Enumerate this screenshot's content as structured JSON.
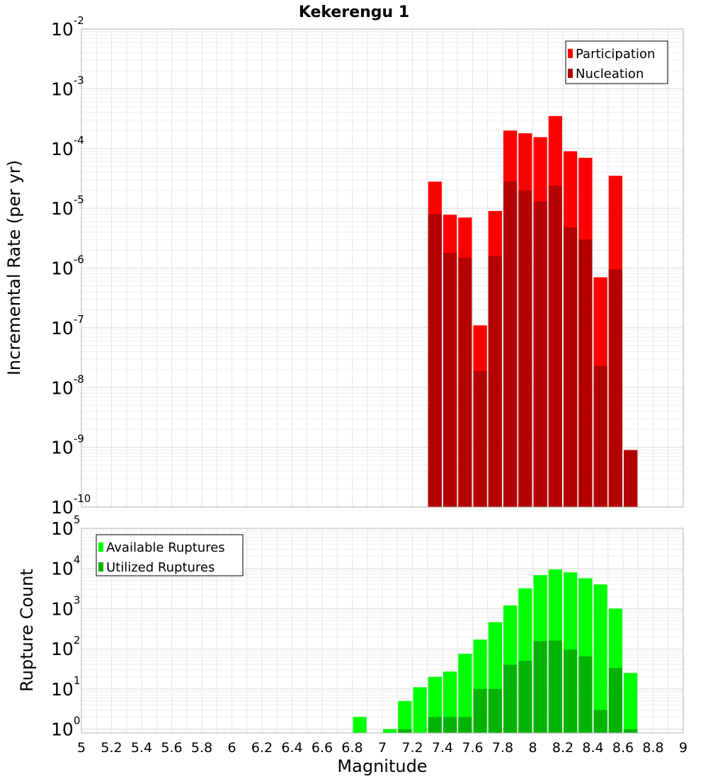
{
  "chart_data": [
    {
      "type": "bar",
      "title": "Kekerengu 1",
      "xlabel": "",
      "ylabel": "Incremental Rate (per yr)",
      "yscale": "log",
      "ylim": [
        1e-10,
        0.01
      ],
      "xlim": [
        5,
        9
      ],
      "grid": true,
      "legend_position": "top-right",
      "series": [
        {
          "name": "Participation",
          "color": "#ff0000",
          "x": [
            7.35,
            7.45,
            7.55,
            7.65,
            7.75,
            7.85,
            7.95,
            8.05,
            8.15,
            8.25,
            8.35,
            8.45,
            8.55,
            8.65
          ],
          "values": [
            2.8e-05,
            7.8e-06,
            7e-06,
            1.1e-07,
            9e-06,
            0.0002,
            0.00018,
            0.000155,
            0.00035,
            9e-05,
            7e-05,
            7e-07,
            3.5e-05,
            9e-10
          ]
        },
        {
          "name": "Nucleation",
          "color": "#b30000",
          "x": [
            7.35,
            7.45,
            7.55,
            7.65,
            7.75,
            7.85,
            7.95,
            8.05,
            8.15,
            8.25,
            8.35,
            8.45,
            8.55,
            8.65
          ],
          "values": [
            8e-06,
            1.8e-06,
            1.5e-06,
            1.9e-08,
            1.6e-06,
            2.8e-05,
            2e-05,
            1.3e-05,
            2.4e-05,
            4.8e-06,
            3e-06,
            2.3e-08,
            9.5e-07,
            9e-10
          ]
        }
      ],
      "ytick_labels": [
        {
          "base": "10",
          "exp": "-10",
          "value": 1e-10
        },
        {
          "base": "10",
          "exp": "-9",
          "value": 1e-09
        },
        {
          "base": "10",
          "exp": "-8",
          "value": 1e-08
        },
        {
          "base": "10",
          "exp": "-7",
          "value": 1e-07
        },
        {
          "base": "10",
          "exp": "-6",
          "value": 1e-06
        },
        {
          "base": "10",
          "exp": "-5",
          "value": 1e-05
        },
        {
          "base": "10",
          "exp": "-4",
          "value": 0.0001
        },
        {
          "base": "10",
          "exp": "-3",
          "value": 0.001
        },
        {
          "base": "10",
          "exp": "-2",
          "value": 0.01
        }
      ]
    },
    {
      "type": "bar",
      "title": "",
      "xlabel": "Magnitude",
      "ylabel": "Rupture Count",
      "yscale": "log",
      "ylim": [
        0.8,
        100000.0
      ],
      "xlim": [
        5,
        9
      ],
      "grid": true,
      "legend_position": "top-left",
      "series": [
        {
          "name": "Available Ruptures",
          "color": "#00ff00",
          "x": [
            6.85,
            7.05,
            7.15,
            7.25,
            7.35,
            7.45,
            7.55,
            7.65,
            7.75,
            7.85,
            7.95,
            8.05,
            8.15,
            8.25,
            8.35,
            8.45,
            8.55,
            8.65
          ],
          "values": [
            2,
            1,
            5,
            11,
            20,
            27,
            75,
            170,
            460,
            1200,
            3200,
            6800,
            9500,
            8000,
            5700,
            4000,
            1000,
            25
          ]
        },
        {
          "name": "Utilized Ruptures",
          "color": "#00b300",
          "x": [
            7.15,
            7.35,
            7.45,
            7.55,
            7.65,
            7.75,
            7.85,
            7.95,
            8.05,
            8.15,
            8.25,
            8.35,
            8.45,
            8.55,
            8.65
          ],
          "values": [
            1,
            2,
            2,
            2,
            10,
            10,
            40,
            50,
            155,
            160,
            95,
            65,
            3,
            33,
            1
          ]
        }
      ],
      "ytick_labels": [
        {
          "base": "10",
          "exp": "0",
          "value": 1
        },
        {
          "base": "10",
          "exp": "1",
          "value": 10
        },
        {
          "base": "10",
          "exp": "2",
          "value": 100
        },
        {
          "base": "10",
          "exp": "3",
          "value": 1000
        },
        {
          "base": "10",
          "exp": "4",
          "value": 10000
        },
        {
          "base": "10",
          "exp": "5",
          "value": 100000
        }
      ],
      "xtick_labels": [
        "5",
        "5.2",
        "5.4",
        "5.6",
        "5.8",
        "6",
        "6.2",
        "6.4",
        "6.6",
        "6.8",
        "7",
        "7.2",
        "7.4",
        "7.6",
        "7.8",
        "8",
        "8.2",
        "8.4",
        "8.6",
        "8.8",
        "9"
      ],
      "xticks": [
        5,
        5.2,
        5.4,
        5.6,
        5.8,
        6,
        6.2,
        6.4,
        6.6,
        6.8,
        7,
        7.2,
        7.4,
        7.6,
        7.8,
        8,
        8.2,
        8.4,
        8.6,
        8.8,
        9
      ]
    }
  ]
}
